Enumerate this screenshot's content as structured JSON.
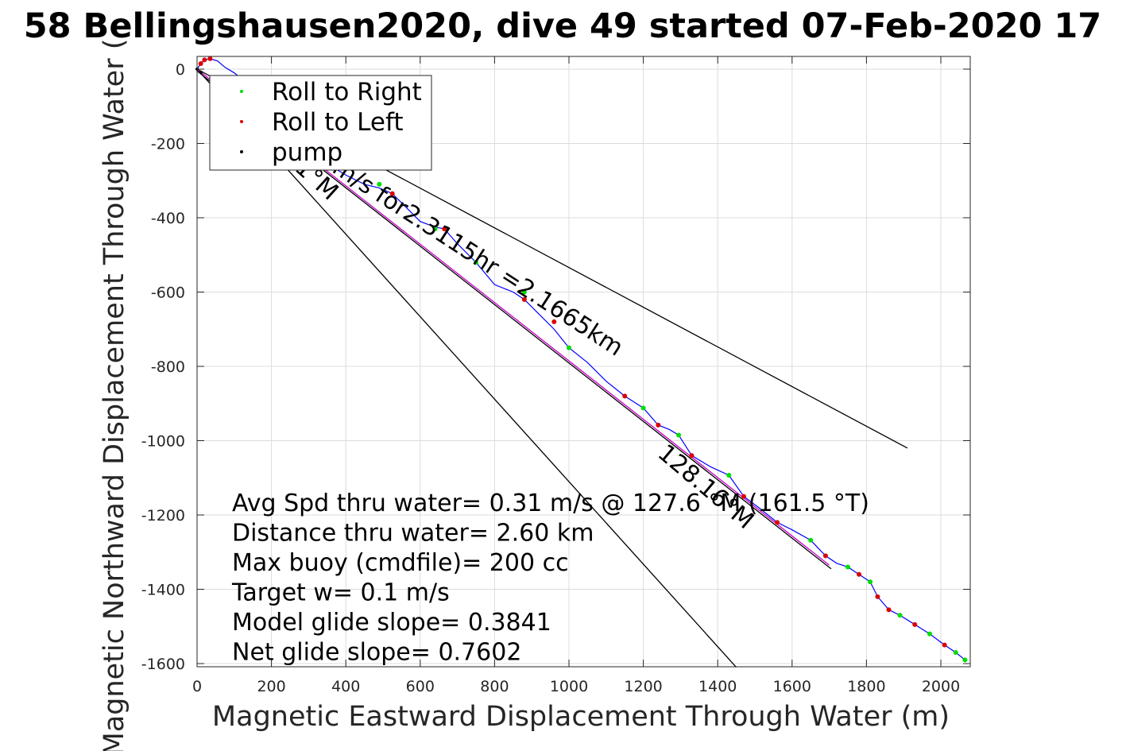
{
  "chart_data": {
    "type": "line",
    "title": "58 Bellingshausen2020, dive 49 started 07-Feb-2020 17",
    "xlabel": "Magnetic Eastward Displacement Through Water (m)",
    "ylabel": "Magnetic Northward Displacement Through Water (",
    "xlim": [
      0,
      2070
    ],
    "ylim": [
      -1610,
      35
    ],
    "xticks": [
      0,
      200,
      400,
      600,
      800,
      1000,
      1200,
      1400,
      1600,
      1800,
      2000
    ],
    "yticks": [
      0,
      -200,
      -400,
      -600,
      -800,
      -1000,
      -1200,
      -1400,
      -1600
    ],
    "grid": true,
    "legend_position": "top-left",
    "legend": [
      {
        "label": "Roll to Right",
        "color": "#00dd00"
      },
      {
        "label": "Roll to Left",
        "color": "#dd0000"
      },
      {
        "label": "pump",
        "color": "#000000"
      }
    ],
    "track": {
      "color": "#0000ff",
      "x": [
        0,
        10,
        20,
        35,
        55,
        75,
        100,
        150,
        200,
        250,
        300,
        350,
        400,
        450,
        490,
        525,
        560,
        600,
        640,
        665,
        700,
        750,
        800,
        850,
        880,
        920,
        960,
        1000,
        1050,
        1100,
        1150,
        1200,
        1240,
        1270,
        1295,
        1330,
        1380,
        1430,
        1470,
        1510,
        1560,
        1600,
        1650,
        1690,
        1720,
        1750,
        1780,
        1810,
        1830,
        1860,
        1890,
        1930,
        1970,
        2010,
        2040,
        2065
      ],
      "y": [
        0,
        15,
        25,
        28,
        22,
        5,
        -10,
        -50,
        -110,
        -170,
        -210,
        -255,
        -285,
        -310,
        -320,
        -335,
        -370,
        -410,
        -425,
        -430,
        -470,
        -520,
        -580,
        -600,
        -620,
        -660,
        -700,
        -750,
        -790,
        -840,
        -880,
        -912,
        -958,
        -970,
        -985,
        -1040,
        -1070,
        -1093,
        -1150,
        -1180,
        -1220,
        -1240,
        -1268,
        -1310,
        -1330,
        -1340,
        -1360,
        -1380,
        -1420,
        -1455,
        -1470,
        -1495,
        -1520,
        -1550,
        -1570,
        -1590
      ]
    },
    "roll_right_points": {
      "x": [
        490,
        640,
        750,
        880,
        1000,
        1200,
        1295,
        1430,
        1650,
        1750,
        1810,
        1890,
        1970,
        2040,
        2065
      ],
      "y": [
        -310,
        -430,
        -520,
        -600,
        -750,
        -912,
        -985,
        -1093,
        -1268,
        -1340,
        -1380,
        -1470,
        -1520,
        -1570,
        -1590
      ]
    },
    "roll_left_points": {
      "x": [
        10,
        20,
        35,
        525,
        665,
        880,
        960,
        1150,
        1240,
        1330,
        1470,
        1560,
        1690,
        1780,
        1830,
        1860,
        1930,
        2010
      ],
      "y": [
        15,
        25,
        28,
        -335,
        -430,
        -620,
        -680,
        -880,
        -958,
        -1040,
        -1150,
        -1220,
        -1310,
        -1360,
        -1420,
        -1455,
        -1495,
        -1550
      ]
    },
    "pump_points": {
      "x": [
        0,
        10
      ],
      "y": [
        0,
        -8
      ]
    },
    "ref_lines": [
      {
        "color": "#000000",
        "x": [
          0,
          1450
        ],
        "y": [
          0,
          -1610
        ]
      },
      {
        "color": "#000000",
        "x": [
          0,
          1910
        ],
        "y": [
          0,
          -1020
        ]
      },
      {
        "color": "#cc00cc",
        "x": [
          0,
          1700
        ],
        "y": [
          0,
          -1335
        ]
      },
      {
        "color": "#000000",
        "x": [
          0,
          1705
        ],
        "y": [
          -5,
          -1345
        ]
      }
    ],
    "annotations": [
      {
        "text": "m/s for2.3115hr =2.1665km",
        "x": 360,
        "y": -275,
        "angle_deg": 33
      },
      {
        "text": "128.16°M",
        "x": 1235,
        "y": -1040,
        "angle_deg": 40
      },
      {
        "text": "1°M",
        "x": 260,
        "y": -270,
        "angle_deg": 42
      }
    ],
    "stats_text": [
      "Avg Spd thru water=  0.31 m/s @ 127.6 °M (161.5 °T)",
      "Distance thru water=  2.60 km",
      "Max buoy (cmdfile)= 200 cc",
      "Target w= 0.1 m/s",
      "Model glide slope= 0.3841",
      "Net glide slope= 0.7602"
    ]
  }
}
